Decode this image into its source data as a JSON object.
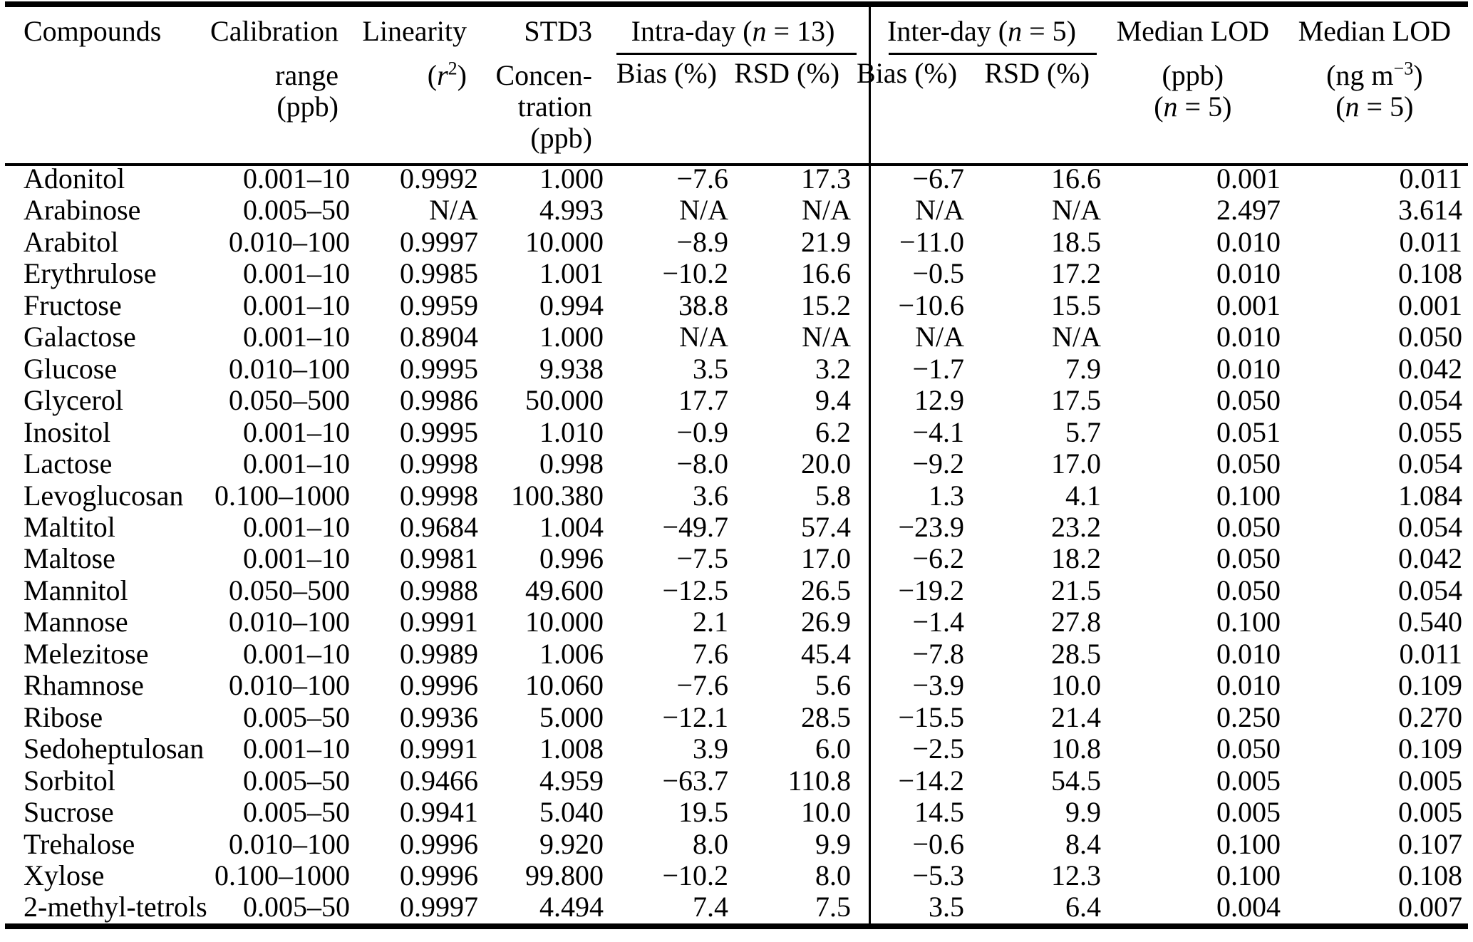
{
  "table": {
    "header": {
      "compounds": "Compounds",
      "calibration": {
        "l1": "Calibration",
        "l2": "range",
        "l3": "(ppb)"
      },
      "linearity": {
        "l1": "Linearity",
        "l2_pre": "(",
        "l2_var": "r",
        "l2_sup": "2",
        "l2_post": ")"
      },
      "std3": {
        "l1": "STD3",
        "l2": "Concen-",
        "l3": "tration",
        "l4": "(ppb)"
      },
      "intra_day": {
        "pre": "Intra-day (",
        "var": "n",
        "post": " = 13)"
      },
      "inter_day": {
        "pre": "Inter-day (",
        "var": "n",
        "post": " = 5)"
      },
      "bias_intra": "Bias (%)",
      "rsd_intra": "RSD (%)",
      "bias_inter": "Bias (%)",
      "rsd_inter": "RSD (%)",
      "lod_ppb": {
        "l1": "Median LOD",
        "l2": "(ppb)",
        "l3_pre": "(",
        "l3_var": "n",
        "l3_post": " = 5)"
      },
      "lod_ngm3": {
        "l1": "Median LOD",
        "l2_pre": "(ng m",
        "l2_sup": "−3",
        "l2_post": ")",
        "l3_pre": "(",
        "l3_var": "n",
        "l3_post": " = 5)"
      }
    },
    "col_keys": [
      "compound",
      "calibration-range",
      "linearity-r2",
      "std3-concentration",
      "intra-day-bias",
      "intra-day-rsd",
      "inter-day-bias",
      "inter-day-rsd",
      "median-lod-ppb",
      "median-lod-ngm3"
    ],
    "rows": [
      [
        "Adonitol",
        "0.001–10",
        "0.9992",
        "1.000",
        "−7.6",
        "17.3",
        "−6.7",
        "16.6",
        "0.001",
        "0.011"
      ],
      [
        "Arabinose",
        "0.005–50",
        "N/A",
        "4.993",
        "N/A",
        "N/A",
        "N/A",
        "N/A",
        "2.497",
        "3.614"
      ],
      [
        "Arabitol",
        "0.010–100",
        "0.9997",
        "10.000",
        "−8.9",
        "21.9",
        "−11.0",
        "18.5",
        "0.010",
        "0.011"
      ],
      [
        "Erythrulose",
        "0.001–10",
        "0.9985",
        "1.001",
        "−10.2",
        "16.6",
        "−0.5",
        "17.2",
        "0.010",
        "0.108"
      ],
      [
        "Fructose",
        "0.001–10",
        "0.9959",
        "0.994",
        "38.8",
        "15.2",
        "−10.6",
        "15.5",
        "0.001",
        "0.001"
      ],
      [
        "Galactose",
        "0.001–10",
        "0.8904",
        "1.000",
        "N/A",
        "N/A",
        "N/A",
        "N/A",
        "0.010",
        "0.050"
      ],
      [
        "Glucose",
        "0.010–100",
        "0.9995",
        "9.938",
        "3.5",
        "3.2",
        "−1.7",
        "7.9",
        "0.010",
        "0.042"
      ],
      [
        "Glycerol",
        "0.050–500",
        "0.9986",
        "50.000",
        "17.7",
        "9.4",
        "12.9",
        "17.5",
        "0.050",
        "0.054"
      ],
      [
        "Inositol",
        "0.001–10",
        "0.9995",
        "1.010",
        "−0.9",
        "6.2",
        "−4.1",
        "5.7",
        "0.051",
        "0.055"
      ],
      [
        "Lactose",
        "0.001–10",
        "0.9998",
        "0.998",
        "−8.0",
        "20.0",
        "−9.2",
        "17.0",
        "0.050",
        "0.054"
      ],
      [
        "Levoglucosan",
        "0.100–1000",
        "0.9998",
        "100.380",
        "3.6",
        "5.8",
        "1.3",
        "4.1",
        "0.100",
        "1.084"
      ],
      [
        "Maltitol",
        "0.001–10",
        "0.9684",
        "1.004",
        "−49.7",
        "57.4",
        "−23.9",
        "23.2",
        "0.050",
        "0.054"
      ],
      [
        "Maltose",
        "0.001–10",
        "0.9981",
        "0.996",
        "−7.5",
        "17.0",
        "−6.2",
        "18.2",
        "0.050",
        "0.042"
      ],
      [
        "Mannitol",
        "0.050–500",
        "0.9988",
        "49.600",
        "−12.5",
        "26.5",
        "−19.2",
        "21.5",
        "0.050",
        "0.054"
      ],
      [
        "Mannose",
        "0.010–100",
        "0.9991",
        "10.000",
        "2.1",
        "26.9",
        "−1.4",
        "27.8",
        "0.100",
        "0.540"
      ],
      [
        "Melezitose",
        "0.001–10",
        "0.9989",
        "1.006",
        "7.6",
        "45.4",
        "−7.8",
        "28.5",
        "0.010",
        "0.011"
      ],
      [
        "Rhamnose",
        "0.010–100",
        "0.9996",
        "10.060",
        "−7.6",
        "5.6",
        "−3.9",
        "10.0",
        "0.010",
        "0.109"
      ],
      [
        "Ribose",
        "0.005–50",
        "0.9936",
        "5.000",
        "−12.1",
        "28.5",
        "−15.5",
        "21.4",
        "0.250",
        "0.270"
      ],
      [
        "Sedoheptulosan",
        "0.001–10",
        "0.9991",
        "1.008",
        "3.9",
        "6.0",
        "−2.5",
        "10.8",
        "0.050",
        "0.109"
      ],
      [
        "Sorbitol",
        "0.005–50",
        "0.9466",
        "4.959",
        "−63.7",
        "110.8",
        "−14.2",
        "54.5",
        "0.005",
        "0.005"
      ],
      [
        "Sucrose",
        "0.005–50",
        "0.9941",
        "5.040",
        "19.5",
        "10.0",
        "14.5",
        "9.9",
        "0.005",
        "0.005"
      ],
      [
        "Trehalose",
        "0.010–100",
        "0.9996",
        "9.920",
        "8.0",
        "9.9",
        "−0.6",
        "8.4",
        "0.100",
        "0.107"
      ],
      [
        "Xylose",
        "0.100–1000",
        "0.9996",
        "99.800",
        "−10.2",
        "8.0",
        "−5.3",
        "12.3",
        "0.100",
        "0.108"
      ],
      [
        "2-methyl-tetrols",
        "0.005–50",
        "0.9997",
        "4.494",
        "7.4",
        "7.5",
        "3.5",
        "6.4",
        "0.004",
        "0.007"
      ]
    ]
  }
}
